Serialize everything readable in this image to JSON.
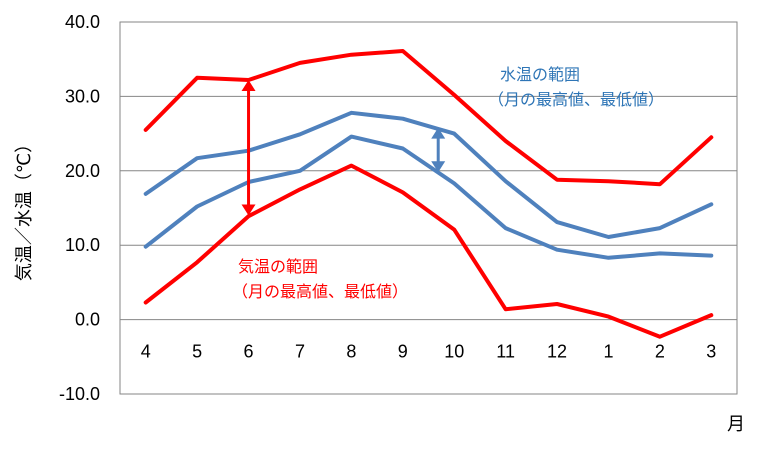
{
  "chart_data": {
    "type": "line",
    "categories": [
      "4",
      "5",
      "6",
      "7",
      "8",
      "9",
      "10",
      "11",
      "12",
      "1",
      "2",
      "3"
    ],
    "series": [
      {
        "color": "#ff0000",
        "values": [
          25.5,
          32.5,
          32.2,
          34.5,
          35.6,
          36.1,
          30.2,
          24.0,
          18.8,
          18.6,
          18.2,
          24.5
        ]
      },
      {
        "color": "#ff0000",
        "values": [
          2.3,
          7.7,
          13.9,
          17.5,
          20.7,
          17.1,
          12.1,
          1.4,
          2.1,
          0.4,
          -2.3,
          0.6
        ]
      },
      {
        "color": "#4f81bd",
        "values": [
          16.9,
          21.7,
          22.7,
          24.9,
          27.8,
          27.0,
          25.0,
          18.6,
          13.1,
          11.1,
          12.3,
          15.5
        ]
      },
      {
        "color": "#4f81bd",
        "values": [
          9.8,
          15.2,
          18.5,
          20.0,
          24.6,
          23.0,
          18.3,
          12.3,
          9.4,
          8.3,
          8.9,
          8.6
        ]
      }
    ],
    "yticks": [
      "40.0",
      "30.0",
      "20.0",
      "10.0",
      "0.0",
      "-10.0"
    ],
    "ylim": [
      -10,
      40
    ],
    "xlabel": "月",
    "ylabel": "気温／水温（℃）",
    "grid": true,
    "annotations": [
      {
        "lines": [
          "水温の範囲",
          "（月の最高値、最低値）"
        ],
        "color": "#2e75b6"
      },
      {
        "lines": [
          "気温の範囲",
          "（月の最高値、最低値）"
        ],
        "color": "#ff0000"
      }
    ],
    "range_arrows": [
      {
        "category": "6",
        "from": 14.0,
        "to": 32.2,
        "color": "#ff0000"
      },
      {
        "category": "10",
        "from": 19.8,
        "to": 25.8,
        "color": "#4f81bd"
      }
    ]
  }
}
